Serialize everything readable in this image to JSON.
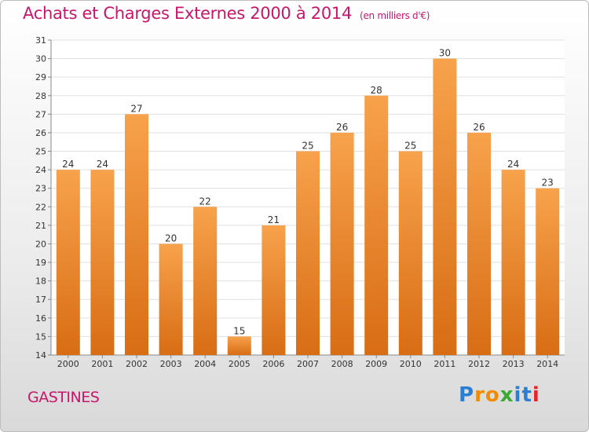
{
  "title": "Achats et Charges Externes 2000 à 2014",
  "unit_note": "(en milliers d'€)",
  "commune": "GASTINES",
  "logo": {
    "text": "Proxiti",
    "letters": [
      "P",
      "r",
      "o",
      "x",
      "i",
      "t",
      "i"
    ],
    "colors": [
      "#2a7fd4",
      "#f08c00",
      "#f08c00",
      "#3aa935",
      "#2a7fd4",
      "#2a7fd4",
      "#e3262b"
    ]
  },
  "colors": {
    "bar_top": "#f7a24c",
    "bar_bottom": "#d86d14",
    "title": "#c8166b"
  },
  "chart_data": {
    "type": "bar",
    "categories": [
      "2000",
      "2001",
      "2002",
      "2003",
      "2004",
      "2005",
      "2006",
      "2007",
      "2008",
      "2009",
      "2010",
      "2011",
      "2012",
      "2013",
      "2014"
    ],
    "values": [
      24,
      24,
      27,
      20,
      22,
      15,
      21,
      25,
      26,
      28,
      25,
      30,
      26,
      24,
      23
    ],
    "ylim": [
      14,
      31
    ],
    "yticks": [
      14,
      15,
      16,
      17,
      18,
      19,
      20,
      21,
      22,
      23,
      24,
      25,
      26,
      27,
      28,
      29,
      30,
      31
    ],
    "grid": true,
    "data_labels": true
  }
}
